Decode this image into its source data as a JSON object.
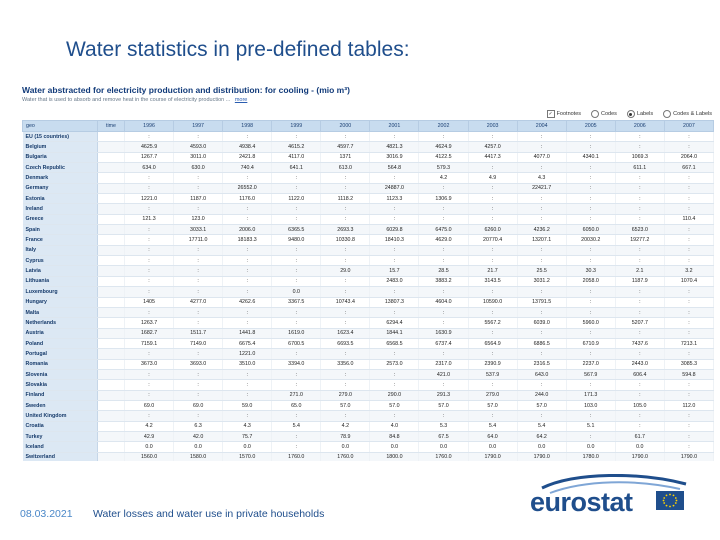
{
  "slide": {
    "title": "Water statistics in pre-defined tables:",
    "date": "08.03.2021",
    "caption": "Water losses and water use in private households",
    "logo_text": "eurostat"
  },
  "dataset": {
    "title": "Water abstracted for electricity production and distribution: for cooling - (mio m³)",
    "subtitle": "Water that is used to absorb and remove heat in the course of electricity production ...",
    "more_link": "more",
    "options": [
      {
        "label": "Footnotes",
        "control": "checkbox",
        "checked": true
      },
      {
        "label": "Codes",
        "control": "radio",
        "checked": false
      },
      {
        "label": "Labels",
        "control": "radio",
        "checked": true
      },
      {
        "label": "Codes & Labels",
        "control": "radio",
        "checked": false
      }
    ]
  },
  "table": {
    "headers": [
      "geo",
      "time",
      "1996",
      "1997",
      "1998",
      "1999",
      "2000",
      "2001",
      "2002",
      "2003",
      "2004",
      "2005",
      "2006",
      "2007"
    ],
    "rows": [
      [
        "EU (15 countries)",
        "",
        ":",
        ":",
        ":",
        ":",
        ":",
        ":",
        ":",
        ":",
        ":",
        ":",
        ":",
        ":"
      ],
      [
        "Belgium",
        "",
        "4625.9",
        "4593.0",
        "4938.4",
        "4615.2",
        "4597.7",
        "4821.3",
        "4624.9",
        "4257.0",
        ":",
        ":",
        ":",
        ":"
      ],
      [
        "Bulgaria",
        "",
        "1267.7",
        "3011.0",
        "2421.8",
        "4117.0",
        "1371",
        "3016.9",
        "4122.5",
        "4417.3",
        "4077.0",
        "4340.1",
        "1069.3",
        "2064.0"
      ],
      [
        "Czech Republic",
        "",
        "634.0",
        "630.0",
        "740.4",
        "641.1",
        "613.0",
        "564.8",
        "579.3",
        ":",
        ":",
        ":",
        "611.1",
        "667.1"
      ],
      [
        "Denmark",
        "",
        ":",
        ":",
        ":",
        ":",
        ":",
        ":",
        "4.2",
        "4.9",
        "4.3",
        ":",
        ":",
        ":"
      ],
      [
        "Germany",
        "",
        ":",
        ":",
        "26552.0",
        ":",
        ":",
        "24887.0",
        ":",
        ":",
        "22421.7",
        ":",
        ":",
        ":"
      ],
      [
        "Estonia",
        "",
        "1221.0",
        "1187.0",
        "1176.0",
        "1122.0",
        "1118.2",
        "1123.3",
        "1306.9",
        ":",
        ":",
        ":",
        ":",
        ":"
      ],
      [
        "Ireland",
        "",
        ":",
        ":",
        ":",
        ":",
        ":",
        ":",
        ":",
        ":",
        ":",
        ":",
        ":",
        ":"
      ],
      [
        "Greece",
        "",
        "121.3",
        "123.0",
        ":",
        ":",
        ":",
        ":",
        ":",
        ":",
        ":",
        ":",
        ":",
        "110.4"
      ],
      [
        "Spain",
        "",
        ":",
        "3033.1",
        "2006.0",
        "6365.5",
        "2693.3",
        "6029.8",
        "6475.0",
        "6260.0",
        "4236.2",
        "6050.0",
        "6523.0",
        ":"
      ],
      [
        "France",
        "",
        ":",
        "17711.0",
        "18183.3",
        "9480.0",
        "10330.8",
        "18410.3",
        "4629.0",
        "20770.4",
        "13207.1",
        "20030.2",
        "19277.2",
        ":"
      ],
      [
        "Italy",
        "",
        ":",
        ":",
        ":",
        ":",
        ":",
        ":",
        ":",
        ":",
        ":",
        ":",
        ":",
        ":"
      ],
      [
        "Cyprus",
        "",
        ":",
        ":",
        ":",
        ":",
        ":",
        ":",
        ":",
        ":",
        ":",
        ":",
        ":",
        ":"
      ],
      [
        "Latvia",
        "",
        ":",
        ":",
        ":",
        ":",
        "29.0",
        "15.7",
        "28.5",
        "21.7",
        "25.5",
        "30.3",
        "2.1",
        "3.2"
      ],
      [
        "Lithuania",
        "",
        ":",
        ":",
        ":",
        ":",
        ":",
        "2483.0",
        "3883.2",
        "3143.5",
        "3031.2",
        "2058.0",
        "1187.9",
        "1070.4"
      ],
      [
        "Luxembourg",
        "",
        ":",
        ":",
        ":",
        "0.0",
        ":",
        ":",
        ":",
        ":",
        ":",
        ":",
        ":",
        ":"
      ],
      [
        "Hungary",
        "",
        "1405",
        "4277.0",
        "4262.6",
        "3367.5",
        "10743.4",
        "13807.3",
        "4604.0",
        "10590.0",
        "13791.5",
        ":",
        ":",
        ":"
      ],
      [
        "Malta",
        "",
        ":",
        ":",
        ":",
        ":",
        ":",
        ":",
        ":",
        ":",
        ":",
        ":",
        ":",
        ":"
      ],
      [
        "Netherlands",
        "",
        "1263.7",
        ":",
        ":",
        ":",
        ":",
        "6294.4",
        ":",
        "5567.2",
        "6039.0",
        "5960.0",
        "5207.7",
        ":"
      ],
      [
        "Austria",
        "",
        "1682.7",
        "1511.7",
        "1441.8",
        "1619.0",
        "1623.4",
        "1844.1",
        "1630.9",
        ":",
        ":",
        ":",
        ":",
        ":"
      ],
      [
        "Poland",
        "",
        "7159.1",
        "7149.0",
        "6675.4",
        "6700.5",
        "6693.5",
        "6568.5",
        "6737.4",
        "6564.9",
        "6886.5",
        "6710.9",
        "7437.6",
        "7213.1"
      ],
      [
        "Portugal",
        "",
        ":",
        ":",
        "1221.0",
        ":",
        ":",
        ":",
        ":",
        ":",
        ":",
        ":",
        ":",
        ":"
      ],
      [
        "Romania",
        "",
        "3673.0",
        "3693.0",
        "3510.0",
        "3394.0",
        "3356.0",
        "2573.0",
        "2317.0",
        "2390.9",
        "2316.5",
        "2237.0",
        "2443.0",
        "3085.3"
      ],
      [
        "Slovenia",
        "",
        ":",
        ":",
        ":",
        ":",
        ":",
        ":",
        "421.0",
        "537.9",
        "643.0",
        "567.9",
        "606.4",
        "594.8"
      ],
      [
        "Slovakia",
        "",
        ":",
        ":",
        ":",
        ":",
        ":",
        ":",
        ":",
        ":",
        ":",
        ":",
        ":",
        ":"
      ],
      [
        "Finland",
        "",
        ":",
        ":",
        ":",
        "271.0",
        "279.0",
        "290.0",
        "291.3",
        "279.0",
        "244.0",
        "171.3",
        ":",
        ":"
      ],
      [
        "Sweden",
        "",
        "69.0",
        "69.0",
        "59.0",
        "65.0",
        "57.0",
        "57.0",
        "57.0",
        "57.0",
        "57.0",
        "103.0",
        "105.0",
        "112.0"
      ],
      [
        "United Kingdom",
        "",
        ":",
        ":",
        ":",
        ":",
        ":",
        ":",
        ":",
        ":",
        ":",
        ":",
        ":",
        ":"
      ],
      [
        "Croatia",
        "",
        "4.2",
        "6.3",
        "4.3",
        "5.4",
        "4.2",
        "4.0",
        "5.3",
        "5.4",
        "5.4",
        "5.1",
        ":",
        ":"
      ],
      [
        "Turkey",
        "",
        "42.9",
        "42.0",
        "75.7",
        ":",
        "78.9",
        "84.8",
        "67.5",
        "64.0",
        "64.2",
        ":",
        "61.7",
        ":"
      ],
      [
        "Iceland",
        "",
        "0.0",
        "0.0",
        "0.0",
        ":",
        "0.0",
        "0.0",
        "0.0",
        "0.0",
        "0.0",
        "0.0",
        "0.0",
        ":"
      ],
      [
        "Switzerland",
        "",
        "1560.0",
        "1580.0",
        "1570.0",
        "1760.0",
        "1760.0",
        "1800.0",
        "1760.0",
        "1790.0",
        "1790.0",
        "1780.0",
        "1790.0",
        "1790.0"
      ]
    ]
  }
}
